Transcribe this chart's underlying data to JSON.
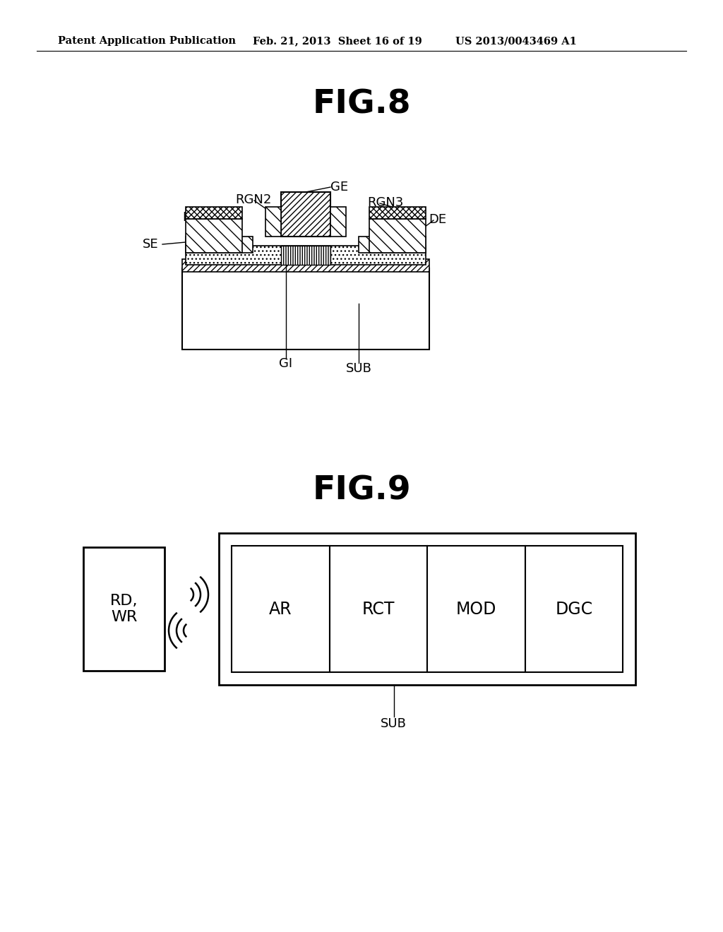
{
  "bg_color": "#ffffff",
  "header_text": "Patent Application Publication",
  "header_date": "Feb. 21, 2013  Sheet 16 of 19",
  "header_patent": "US 2013/0043469 A1",
  "fig8_title": "FIG.8",
  "fig9_title": "FIG.9",
  "fig9_blocks": [
    "AR",
    "RCT",
    "MOD",
    "DGC"
  ],
  "fig9_rdwr": "RD,\nWR",
  "fig9_sub_label": "SUB"
}
